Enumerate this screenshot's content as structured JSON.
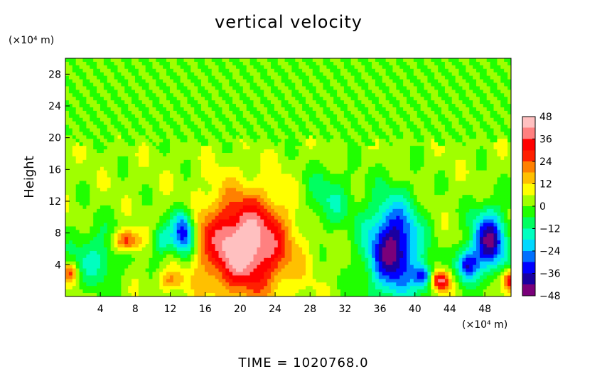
{
  "chart_data": {
    "type": "heatmap",
    "title": "vertical velocity",
    "xlabel": "",
    "ylabel": "Height",
    "x_unit": "(×10⁴ m)",
    "y_unit": "(×10⁴ m)",
    "xlim": [
      0,
      51
    ],
    "ylim": [
      0,
      30
    ],
    "x_ticks": [
      4,
      8,
      12,
      16,
      20,
      24,
      28,
      32,
      36,
      40,
      44,
      48
    ],
    "x_tick_labels": [
      "4",
      "8",
      "12",
      "16",
      "20",
      "24",
      "28",
      "32",
      "36",
      "40",
      "44",
      "48"
    ],
    "y_ticks": [
      4,
      8,
      12,
      16,
      20,
      24,
      28
    ],
    "y_tick_labels": [
      "4",
      "8",
      "12",
      "16",
      "20",
      "24",
      "28"
    ],
    "colorbar": {
      "range": [
        -48,
        48
      ],
      "ticks": [
        48,
        36,
        24,
        12,
        0,
        -12,
        -24,
        -36,
        -48
      ],
      "tick_labels": [
        "48",
        "36",
        "24",
        "12",
        "0",
        "−12",
        "−24",
        "−36",
        "−48"
      ],
      "colors": [
        "#7a007a",
        "#1a00a0",
        "#0000ff",
        "#0070ff",
        "#00d8ff",
        "#00ffc0",
        "#00ff60",
        "#20ff00",
        "#a0ff00",
        "#ffff00",
        "#ffc000",
        "#ff8000",
        "#ff2000",
        "#ff0000",
        "#ff8080",
        "#ffc0c0"
      ]
    },
    "features": [
      {
        "kind": "updraft",
        "x": 20.5,
        "y": 6.5,
        "peak": 48,
        "rx": 5,
        "ry": 6
      },
      {
        "kind": "updraft",
        "x": 7,
        "y": 7,
        "peak": 30,
        "rx": 1.5,
        "ry": 1.3
      },
      {
        "kind": "updraft",
        "x": 43,
        "y": 2,
        "peak": 40,
        "rx": 1,
        "ry": 1.2
      },
      {
        "kind": "updraft",
        "x": 51,
        "y": 2,
        "peak": 36,
        "rx": 1,
        "ry": 1.3
      },
      {
        "kind": "updraft",
        "x": 0.5,
        "y": 3,
        "peak": 24,
        "rx": 0.8,
        "ry": 1.2
      },
      {
        "kind": "updraft",
        "x": 12,
        "y": 2,
        "peak": 14,
        "rx": 1.5,
        "ry": 1.2
      },
      {
        "kind": "downdraft",
        "x": 37.5,
        "y": 6,
        "peak": -48,
        "rx": 3,
        "ry": 6
      },
      {
        "kind": "downdraft",
        "x": 13.5,
        "y": 8,
        "peak": -42,
        "rx": 1.3,
        "ry": 3
      },
      {
        "kind": "downdraft",
        "x": 48.5,
        "y": 7,
        "peak": -44,
        "rx": 2,
        "ry": 4
      },
      {
        "kind": "downdraft",
        "x": 41,
        "y": 2.5,
        "peak": -30,
        "rx": 1,
        "ry": 1.5
      },
      {
        "kind": "downdraft",
        "x": 46,
        "y": 4,
        "peak": -36,
        "rx": 1.2,
        "ry": 2
      },
      {
        "kind": "downdraft",
        "x": 3.5,
        "y": 5,
        "peak": -16,
        "rx": 3,
        "ry": 4
      },
      {
        "kind": "downdraft",
        "x": 11,
        "y": 7,
        "peak": -20,
        "rx": 1.2,
        "ry": 2
      },
      {
        "kind": "downdraft",
        "x": 30,
        "y": 12,
        "peak": -14,
        "rx": 3,
        "ry": 4
      }
    ],
    "background_value": 3,
    "upper_layer_value": 0,
    "active_layer_top": 19.5
  },
  "footer": {
    "time_label": "TIME  =  1020768.0"
  }
}
